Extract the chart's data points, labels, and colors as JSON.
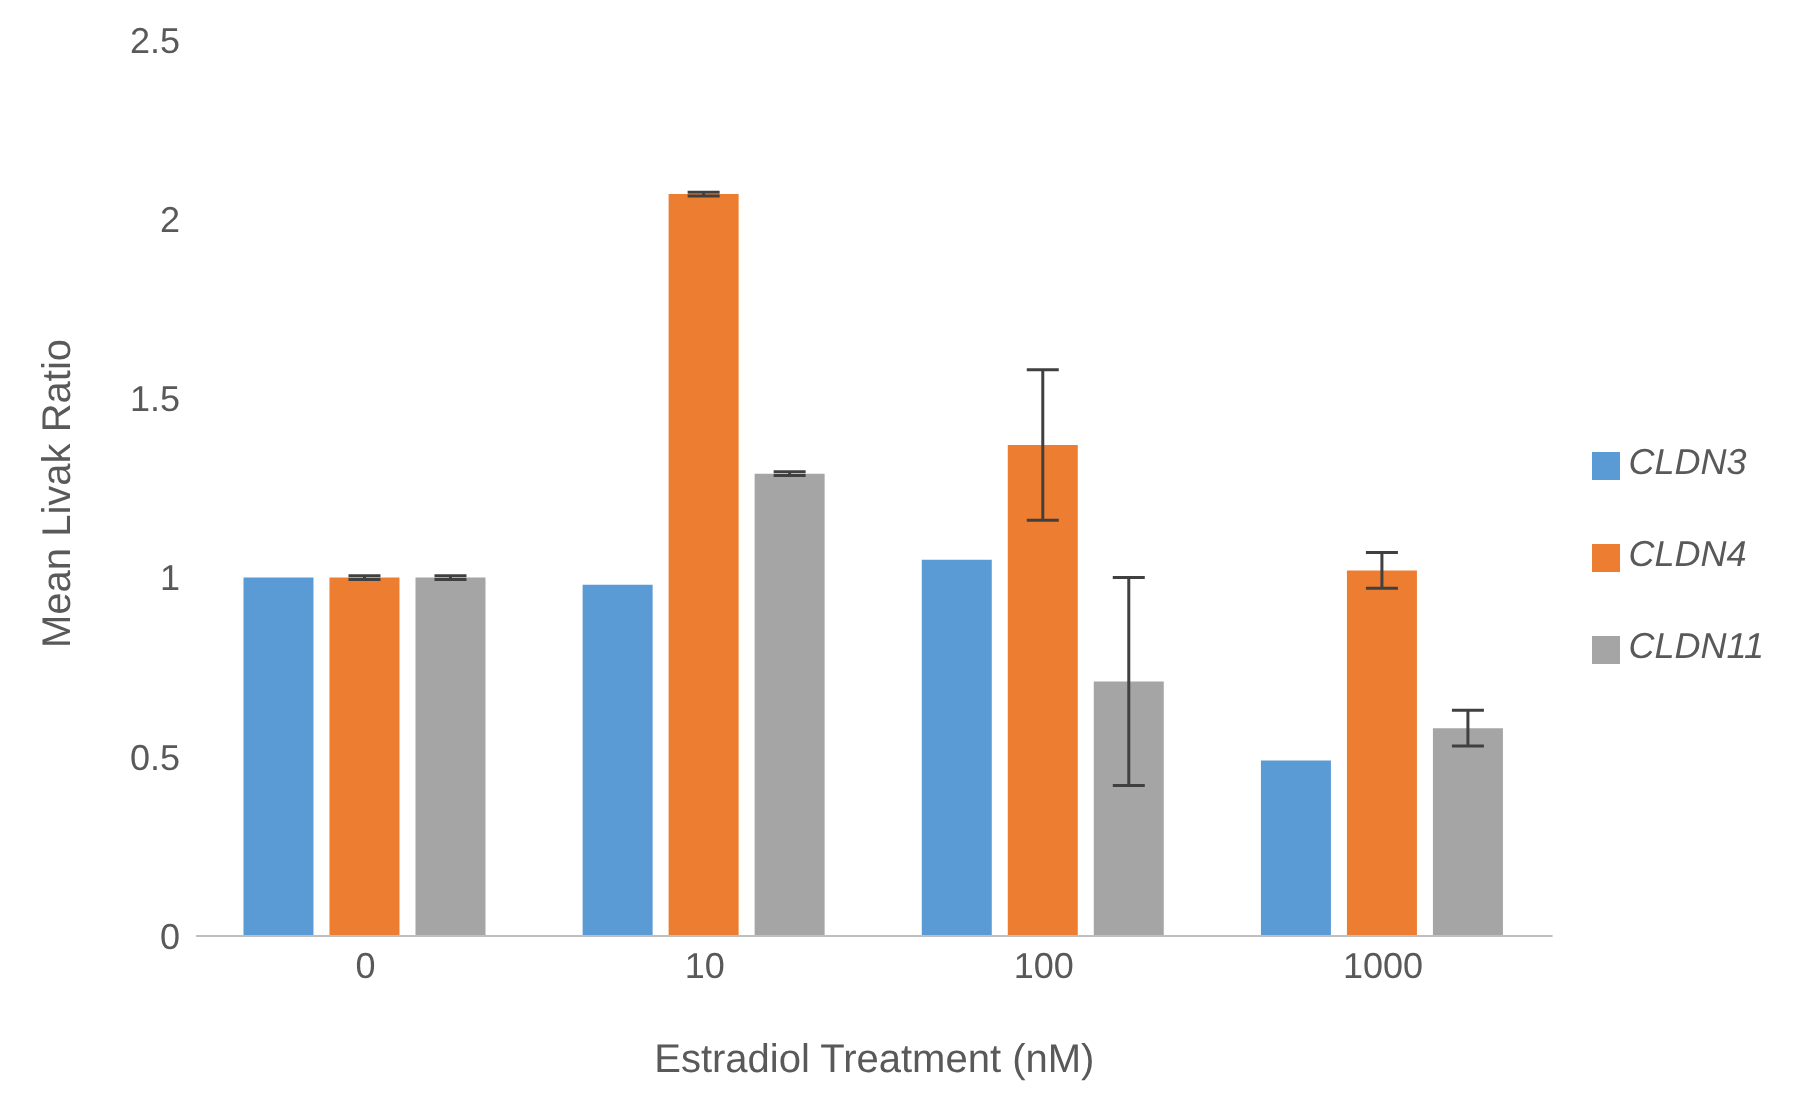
{
  "chart_data": {
    "type": "bar",
    "xlabel": "Estradiol Treatment (nM)",
    "ylabel": "Mean Livak Ratio",
    "categories": [
      "0",
      "10",
      "100",
      "1000"
    ],
    "series": [
      {
        "name": "CLDN3",
        "color": "#5b9bd5",
        "values": [
          1.0,
          0.98,
          1.05,
          0.49
        ]
      },
      {
        "name": "CLDN4",
        "color": "#ed7d31",
        "values": [
          1.0,
          2.07,
          1.37,
          1.02
        ],
        "errors": [
          0.005,
          0.005,
          0.21,
          0.05
        ]
      },
      {
        "name": "CLDN11",
        "color": "#a5a5a5",
        "values": [
          1.0,
          1.29,
          0.71,
          0.58
        ],
        "errors": [
          0.005,
          0.005,
          0.29,
          0.05
        ]
      }
    ],
    "ylim": [
      0,
      2.5
    ],
    "yticks": [
      0,
      0.5,
      1,
      1.5,
      2,
      2.5
    ],
    "grid": false,
    "legend": "right"
  }
}
